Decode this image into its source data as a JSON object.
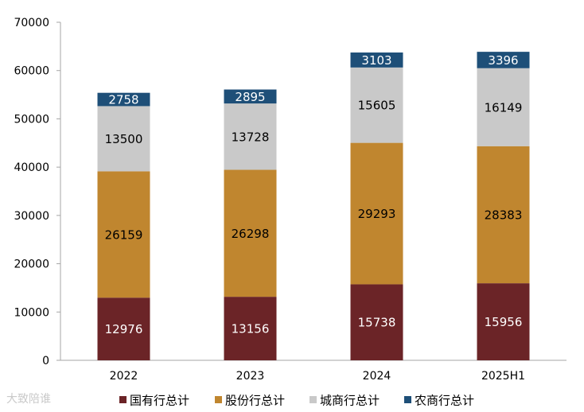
{
  "chart_data": {
    "type": "bar",
    "stacked": true,
    "title": "",
    "xlabel": "",
    "ylabel": "",
    "categories": [
      "2022",
      "2023",
      "2024",
      "2025H1"
    ],
    "ylim": [
      0,
      70000
    ],
    "yticks": [
      0,
      10000,
      20000,
      30000,
      40000,
      50000,
      60000,
      70000
    ],
    "grid": false,
    "legend_position": "bottom",
    "series": [
      {
        "name": "国有行总计",
        "color": "#6b2427",
        "label_color": "#ffffff",
        "values": [
          12976,
          13156,
          15738,
          15956
        ]
      },
      {
        "name": "股份行总计",
        "color": "#c0862f",
        "label_color": "#000000",
        "values": [
          26159,
          26298,
          29293,
          28383
        ]
      },
      {
        "name": "城商行总计",
        "color": "#c9c9c9",
        "label_color": "#000000",
        "values": [
          13500,
          13728,
          15605,
          16149
        ]
      },
      {
        "name": "农商行总计",
        "color": "#1e4f78",
        "label_color": "#ffffff",
        "values": [
          2758,
          2895,
          3103,
          3396
        ]
      }
    ]
  },
  "watermark": "大致陪谁"
}
